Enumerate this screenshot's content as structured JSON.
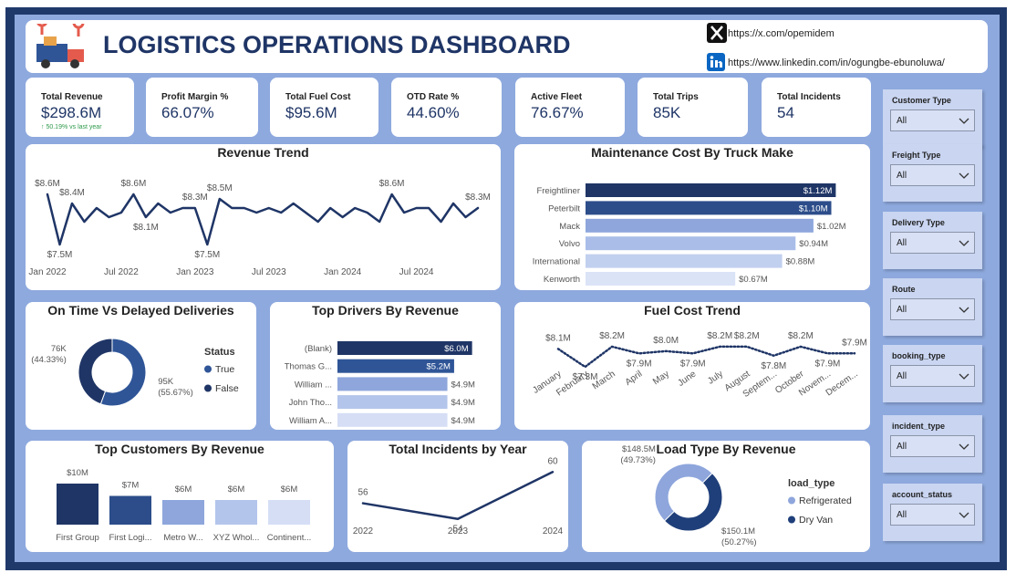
{
  "header": {
    "title": "LOGISTICS OPERATIONS DASHBOARD",
    "links": [
      "https://x.com/opemidem",
      "https://www.linkedin.com/in/ogungbe-ebunoluwa/"
    ]
  },
  "kpis": [
    {
      "label": "Total Revenue",
      "value": "$298.6M",
      "change": "↑ 50.19% vs last year"
    },
    {
      "label": "Profit Margin %",
      "value": "66.07%"
    },
    {
      "label": "Total Fuel Cost",
      "value": "$95.6M"
    },
    {
      "label": "OTD Rate %",
      "value": "44.60%"
    },
    {
      "label": "Active Fleet",
      "value": "76.67%"
    },
    {
      "label": "Total Trips",
      "value": "85K"
    },
    {
      "label": "Total Incidents",
      "value": "54"
    }
  ],
  "filters": [
    {
      "label": "Customer Type",
      "value": "All"
    },
    {
      "label": "Freight Type",
      "value": "All"
    },
    {
      "label": "Delivery Type",
      "value": "All"
    },
    {
      "label": "Route",
      "value": "All"
    },
    {
      "label": "booking_type",
      "value": "All"
    },
    {
      "label": "incident_type",
      "value": "All"
    },
    {
      "label": "account_status",
      "value": "All"
    }
  ],
  "chart_data": [
    {
      "type": "line",
      "title": "Revenue Trend",
      "color": "#1f3566",
      "line_style": "solid",
      "categories": [
        "Jan 2022",
        null,
        null,
        null,
        null,
        null,
        "Jul 2022",
        null,
        null,
        null,
        null,
        null,
        "Jan 2023",
        null,
        null,
        null,
        null,
        null,
        "Jul 2023",
        null,
        null,
        null,
        null,
        null,
        "Jan 2024",
        null,
        null,
        null,
        null,
        null,
        "Jul 2024",
        null,
        null,
        null,
        null,
        null
      ],
      "values": [
        8.6,
        7.5,
        8.4,
        8.0,
        8.3,
        8.1,
        8.2,
        8.6,
        8.1,
        8.4,
        8.2,
        8.3,
        8.3,
        7.5,
        8.5,
        8.3,
        8.3,
        8.2,
        8.3,
        8.2,
        8.4,
        8.2,
        8.0,
        8.3,
        8.1,
        8.3,
        8.2,
        8.0,
        8.6,
        8.2,
        8.3,
        8.3,
        8.0,
        8.4,
        8.1,
        8.3
      ],
      "value_labels": [
        "$8.6M",
        "$7.5M",
        "$8.4M",
        null,
        null,
        null,
        null,
        "$8.6M",
        "$8.1M",
        null,
        null,
        null,
        "$8.3M",
        "$7.5M",
        "$8.5M",
        null,
        null,
        null,
        null,
        null,
        null,
        null,
        null,
        null,
        null,
        null,
        null,
        null,
        "$8.6M",
        null,
        null,
        null,
        null,
        null,
        null,
        "$8.3M"
      ],
      "ylim": [
        7.3,
        8.9
      ]
    },
    {
      "type": "hbar",
      "title": "Maintenance Cost By Truck Make",
      "categories": [
        "Freightliner",
        "Peterbilt",
        "Mack",
        "Volvo",
        "International",
        "Kenworth"
      ],
      "values": [
        1.12,
        1.1,
        1.02,
        0.94,
        0.88,
        0.67
      ],
      "value_labels": [
        "$1.12M",
        "$1.10M",
        "$1.02M",
        "$0.94M",
        "$0.88M",
        "$0.67M"
      ],
      "colors": [
        "#1f3566",
        "#2c4d8a",
        "#8ea6dc",
        "#a9bde8",
        "#c2d0ef",
        "#dbe3f7"
      ],
      "xlim": [
        0,
        1.2
      ]
    },
    {
      "type": "donut",
      "title": "On Time Vs Delayed Deliveries",
      "legend_title": "Status",
      "categories": [
        "True",
        "False"
      ],
      "values": [
        95,
        76
      ],
      "value_labels": [
        "95K",
        "76K"
      ],
      "percents": [
        55.67,
        44.33
      ],
      "percent_labels": [
        "(55.67%)",
        "(44.33%)"
      ],
      "colors": [
        "#2f5597",
        "#1f3566"
      ]
    },
    {
      "type": "hbar",
      "title": "Top Drivers By Revenue",
      "categories": [
        "(Blank)",
        "Thomas G...",
        "William ...",
        "John Tho...",
        "William A..."
      ],
      "values": [
        6.0,
        5.2,
        4.9,
        4.9,
        4.9
      ],
      "value_labels": [
        "$6.0M",
        "$5.2M",
        "$4.9M",
        "$4.9M",
        "$4.9M"
      ],
      "colors": [
        "#1f3566",
        "#2f5597",
        "#8ea6dc",
        "#b4c5ec",
        "#d5def5"
      ],
      "xlim": [
        0,
        6.3
      ]
    },
    {
      "type": "line",
      "title": "Fuel Cost Trend",
      "color": "#1f3566",
      "line_style": "dotted",
      "categories": [
        "January",
        "February",
        "March",
        "April",
        "May",
        "June",
        "July",
        "August",
        "Septem...",
        "October",
        "Novem...",
        "Decem..."
      ],
      "values": [
        8.1,
        7.3,
        8.2,
        7.9,
        8.0,
        7.9,
        8.2,
        8.2,
        7.8,
        8.2,
        7.9,
        7.9
      ],
      "value_labels": [
        "$8.1M",
        "$7.3M",
        "$8.2M",
        "$7.9M",
        "$8.0M",
        "$7.9M",
        "$8.2M",
        "$8.2M",
        "$7.8M",
        "$8.2M",
        "$7.9M",
        "$7.9M"
      ],
      "ylim": [
        7.1,
        8.4
      ]
    },
    {
      "type": "vbar",
      "title": "Top Customers By Revenue",
      "categories": [
        "First Group",
        "First Logi...",
        "Metro W...",
        "XYZ Whol...",
        "Continent..."
      ],
      "values": [
        10,
        7,
        6,
        6,
        6
      ],
      "value_labels": [
        "$10M",
        "$7M",
        "$6M",
        "$6M",
        "$6M"
      ],
      "colors": [
        "#1f3566",
        "#2c4d8a",
        "#8ea6dc",
        "#b4c5ec",
        "#d5def5"
      ],
      "ylim": [
        0,
        10
      ]
    },
    {
      "type": "line",
      "title": "Total Incidents by Year",
      "color": "#1f3566",
      "line_style": "solid",
      "categories": [
        "2022",
        "2023",
        "2024"
      ],
      "values": [
        56,
        54,
        60
      ],
      "data_labels": true,
      "ylim": [
        53.5,
        60.5
      ]
    },
    {
      "type": "donut",
      "title": "Load Type By Revenue",
      "legend_title": "load_type",
      "categories": [
        "Refrigerated",
        "Dry Van"
      ],
      "values": [
        148.5,
        150.1
      ],
      "value_labels": [
        "$148.5M",
        "$150.1M"
      ],
      "percents": [
        49.73,
        50.27
      ],
      "percent_labels": [
        "(49.73%)",
        "(50.27%)"
      ],
      "colors": [
        "#8ea6dc",
        "#1f3f7a"
      ]
    }
  ]
}
